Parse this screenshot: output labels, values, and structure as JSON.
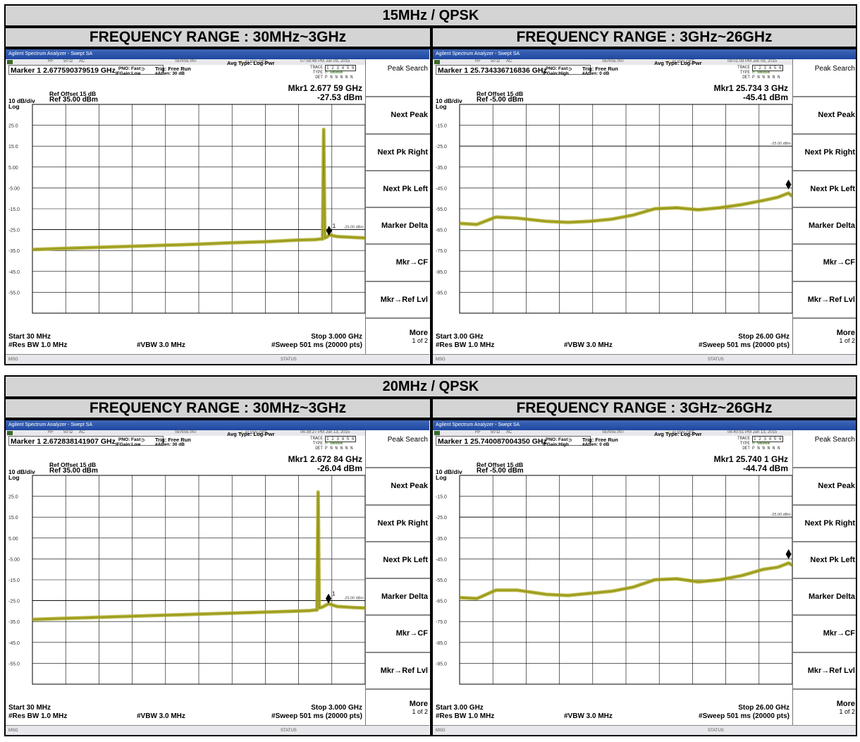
{
  "sections": [
    {
      "title": "15MHz / QPSK",
      "ranges": [
        {
          "header": "FREQUENCY RANGE : 30MHz~3GHz",
          "app_title": "Agilent Spectrum Analyzer - Swept SA",
          "status": {
            "rf": "RF",
            "imp": "50 Ω",
            "coupling": "AC",
            "sense": "SENSE:INT",
            "align": "ALIGN OFF",
            "time": "07:59:48 PM Jun 09, 2015"
          },
          "marker_line": "Marker 1 2.677590379519 GHz",
          "pno": "PNO: Fast",
          "ifgain": "IFGain:Low",
          "trig": "Trig: Free Run",
          "atten": "#Atten: 30 dB",
          "avg_type": "Avg Type: Log-Pwr",
          "trace": {
            "label_trace": "TRACE",
            "label_type": "TYPE",
            "label_det": "DET",
            "trace_nums": "1 2 3 4 5 6",
            "type_val": "M WWWWW",
            "det_val": "P N N N N N"
          },
          "ref_offset": "Ref Offset 15 dB",
          "scale": "10 dB/div",
          "ref_level": "Ref 35.00 dBm",
          "log_label": "Log",
          "mkr_freq": "Mkr1 2.677 59 GHz",
          "mkr_amp": "-27.53 dBm",
          "limit_label": "-25.00 dBm",
          "marker_label": "1",
          "start": "Start 30 MHz",
          "stop": "Stop 3.000 GHz",
          "res_bw": "#Res BW 1.0 MHz",
          "vbw": "#VBW 3.0 MHz",
          "sweep": "#Sweep  501 ms (20000 pts)",
          "msg": "MSG",
          "status_label": "STATUS",
          "softkeys": [
            "Peak Search",
            "Next Peak",
            "Next Pk Right",
            "Next Pk Left",
            "Marker Delta",
            "Mkr→CF",
            "Mkr→Ref Lvl",
            "More"
          ],
          "more_sub": "1 of 2",
          "chart_data": {
            "type": "line",
            "x_unit": "GHz",
            "y_unit": "dBm",
            "xlim": [
              0.03,
              3.0
            ],
            "ylim": [
              -65,
              35
            ],
            "ytick_labels": [
              "25.0",
              "15.0",
              "5.00",
              "-5.00",
              "-15.0",
              "-25.0",
              "-35.0",
              "-45.0",
              "-55.0"
            ],
            "ytick_values": [
              25,
              15,
              5,
              -5,
              -15,
              -25,
              -35,
              -45,
              -55
            ],
            "limit_line": -25.0,
            "marker": {
              "x": 2.67759,
              "y": -27.53
            },
            "series": [
              {
                "x": [
                  0.03,
                  0.3,
                  0.6,
                  0.9,
                  1.2,
                  1.5,
                  1.8,
                  2.1,
                  2.4,
                  2.55,
                  2.6,
                  2.62,
                  2.63,
                  2.64,
                  2.66,
                  2.678,
                  2.75,
                  2.9,
                  3.0
                ],
                "y": [
                  -34.5,
                  -34,
                  -33.5,
                  -33,
                  -32.5,
                  -32,
                  -31.3,
                  -30.8,
                  -30,
                  -29.8,
                  -29.5,
                  -29.5,
                  23,
                  -29,
                  -28.5,
                  -27.5,
                  -28.3,
                  -28.7,
                  -29
                ]
              }
            ]
          }
        },
        {
          "header": "FREQUENCY RANGE : 3GHz~26GHz",
          "app_title": "Agilent Spectrum Analyzer - Swept SA",
          "status": {
            "rf": "RF",
            "imp": "50 Ω",
            "coupling": "AC",
            "sense": "SENSE:INT",
            "align": "ALIGN OFF",
            "time": "08:01:09 PM Jun 09, 2015"
          },
          "marker_line": "Marker 1 25.734336716836 GHz",
          "pno": "PNO: Fast",
          "ifgain": "IFGain:High",
          "trig": "Trig: Free Run",
          "atten": "#Atten: 0 dB",
          "avg_type": "Avg Type: Log-Pwr",
          "trace": {
            "label_trace": "TRACE",
            "label_type": "TYPE",
            "label_det": "DET",
            "trace_nums": "1 2 3 4 5 6",
            "type_val": "M WWWWW",
            "det_val": "P N N N N N"
          },
          "ref_offset": "Ref Offset 15 dB",
          "scale": "10 dB/div",
          "ref_level": "Ref -5.00 dBm",
          "log_label": "Log",
          "mkr_freq": "Mkr1 25.734 3 GHz",
          "mkr_amp": "-45.41 dBm",
          "limit_label": "-25.00 dBm",
          "marker_label": "1",
          "start": "Start 3.00 GHz",
          "stop": "Stop 26.00 GHz",
          "res_bw": "#Res BW 1.0 MHz",
          "vbw": "#VBW 3.0 MHz",
          "sweep": "#Sweep  501 ms (20000 pts)",
          "msg": "MSG",
          "status_label": "STATUS",
          "softkeys": [
            "Peak Search",
            "Next Peak",
            "Next Pk Right",
            "Next Pk Left",
            "Marker Delta",
            "Mkr→CF",
            "Mkr→Ref Lvl",
            "More"
          ],
          "more_sub": "1 of 2",
          "chart_data": {
            "type": "line",
            "x_unit": "GHz",
            "y_unit": "dBm",
            "xlim": [
              3.0,
              26.0
            ],
            "ylim": [
              -105,
              -5
            ],
            "ytick_labels": [
              "-15.0",
              "-25.0",
              "-35.0",
              "-45.0",
              "-55.0",
              "-65.0",
              "-75.0",
              "-85.0",
              "-95.0"
            ],
            "ytick_values": [
              -15,
              -25,
              -35,
              -45,
              -55,
              -65,
              -75,
              -85,
              -95
            ],
            "limit_line": -25.0,
            "marker": {
              "x": 25.7343,
              "y": -45.41
            },
            "series": [
              {
                "x": [
                  3.0,
                  4.2,
                  5.5,
                  7.0,
                  9.0,
                  10.5,
                  12.0,
                  13.5,
                  15.0,
                  16.5,
                  18.0,
                  19.5,
                  21.0,
                  22.5,
                  24.0,
                  25.0,
                  25.73,
                  26.0
                ],
                "y": [
                  -62,
                  -62.5,
                  -59,
                  -59.5,
                  -61,
                  -61.5,
                  -61,
                  -60,
                  -58,
                  -55,
                  -54.5,
                  -55.5,
                  -54.5,
                  -53,
                  -51,
                  -49.5,
                  -47.5,
                  -49
                ]
              }
            ]
          }
        }
      ]
    },
    {
      "title": "20MHz / QPSK",
      "ranges": [
        {
          "header": "FREQUENCY RANGE : 30MHz~3GHz",
          "app_title": "Agilent Spectrum Analyzer - Swept SA",
          "status": {
            "rf": "RF",
            "imp": "50 Ω",
            "coupling": "AC",
            "sense": "SENSE:INT",
            "align": "ALIGN OFF",
            "time": "06:39:27 PM Jun 13, 2015"
          },
          "marker_line": "Marker 1 2.672838141907 GHz",
          "pno": "PNO: Fast",
          "ifgain": "IFGain:Low",
          "trig": "Trig: Free Run",
          "atten": "#Atten: 30 dB",
          "avg_type": "Avg Type: Log-Pwr",
          "trace": {
            "label_trace": "TRACE",
            "label_type": "TYPE",
            "label_det": "DET",
            "trace_nums": "1 2 3 4 5 6",
            "type_val": "M WWWWW",
            "det_val": "P N N N N N"
          },
          "ref_offset": "Ref Offset 15 dB",
          "scale": "10 dB/div",
          "ref_level": "Ref 35.00 dBm",
          "log_label": "Log",
          "mkr_freq": "Mkr1 2.672 84 GHz",
          "mkr_amp": "-26.04 dBm",
          "limit_label": "-25.00 dBm",
          "marker_label": "1",
          "start": "Start 30 MHz",
          "stop": "Stop 3.000 GHz",
          "res_bw": "#Res BW 1.0 MHz",
          "vbw": "#VBW 3.0 MHz",
          "sweep": "#Sweep  501 ms (20000 pts)",
          "msg": "MSG",
          "status_label": "STATUS",
          "softkeys": [
            "Peak Search",
            "Next Peak",
            "Next Pk Right",
            "Next Pk Left",
            "Marker Delta",
            "Mkr→CF",
            "Mkr→Ref Lvl",
            "More"
          ],
          "more_sub": "1 of 2",
          "chart_data": {
            "type": "line",
            "x_unit": "GHz",
            "y_unit": "dBm",
            "xlim": [
              0.03,
              3.0
            ],
            "ylim": [
              -65,
              35
            ],
            "ytick_labels": [
              "25.0",
              "15.0",
              "5.00",
              "-5.00",
              "-15.0",
              "-25.0",
              "-35.0",
              "-45.0",
              "-55.0"
            ],
            "ytick_values": [
              25,
              15,
              5,
              -5,
              -15,
              -25,
              -35,
              -45,
              -55
            ],
            "limit_line": -25.0,
            "marker": {
              "x": 2.67284,
              "y": -26.04
            },
            "series": [
              {
                "x": [
                  0.03,
                  0.3,
                  0.6,
                  0.9,
                  1.2,
                  1.5,
                  1.8,
                  2.1,
                  2.4,
                  2.5,
                  2.55,
                  2.57,
                  2.58,
                  2.59,
                  2.62,
                  2.673,
                  2.75,
                  2.9,
                  3.0
                ],
                "y": [
                  -34,
                  -33.5,
                  -33,
                  -32.5,
                  -32,
                  -31.5,
                  -31,
                  -30.5,
                  -30,
                  -29.8,
                  -29.5,
                  -29.5,
                  27,
                  -28.5,
                  -28,
                  -26.5,
                  -27.8,
                  -28.3,
                  -28.5
                ]
              }
            ]
          }
        },
        {
          "header": "FREQUENCY RANGE : 3GHz~26GHz",
          "app_title": "Agilent Spectrum Analyzer - Swept SA",
          "status": {
            "rf": "RF",
            "imp": "50 Ω",
            "coupling": "AC",
            "sense": "SENSE:INT",
            "align": "ALIGN OFF",
            "time": "06:40:51 PM Jun 13, 2015"
          },
          "marker_line": "Marker 1 25.740087004350 GHz",
          "pno": "PNO: Fast",
          "ifgain": "IFGain:High",
          "trig": "Trig: Free Run",
          "atten": "#Atten: 0 dB",
          "avg_type": "Avg Type: Log-Pwr",
          "trace": {
            "label_trace": "TRACE",
            "label_type": "TYPE",
            "label_det": "DET",
            "trace_nums": "1 2 3 4 5 6",
            "type_val": "M WWWWW",
            "det_val": "P N N N N N"
          },
          "ref_offset": "Ref Offset 15 dB",
          "scale": "10 dB/div",
          "ref_level": "Ref -5.00 dBm",
          "log_label": "Log",
          "mkr_freq": "Mkr1 25.740 1 GHz",
          "mkr_amp": "-44.74 dBm",
          "limit_label": "-25.00 dBm",
          "marker_label": "1",
          "start": "Start 3.00 GHz",
          "stop": "Stop 26.00 GHz",
          "res_bw": "#Res BW 1.0 MHz",
          "vbw": "#VBW 3.0 MHz",
          "sweep": "#Sweep  501 ms (20000 pts)",
          "msg": "MSG",
          "status_label": "STATUS",
          "softkeys": [
            "Peak Search",
            "Next Peak",
            "Next Pk Right",
            "Next Pk Left",
            "Marker Delta",
            "Mkr→CF",
            "Mkr→Ref Lvl",
            "More"
          ],
          "more_sub": "1 of 2",
          "chart_data": {
            "type": "line",
            "x_unit": "GHz",
            "y_unit": "dBm",
            "xlim": [
              3.0,
              26.0
            ],
            "ylim": [
              -105,
              -5
            ],
            "ytick_labels": [
              "-15.0",
              "-25.0",
              "-35.0",
              "-45.0",
              "-55.0",
              "-65.0",
              "-75.0",
              "-85.0",
              "-95.0"
            ],
            "ytick_values": [
              -15,
              -25,
              -35,
              -45,
              -55,
              -65,
              -75,
              -85,
              -95
            ],
            "limit_line": -25.0,
            "marker": {
              "x": 25.7401,
              "y": -44.74
            },
            "series": [
              {
                "x": [
                  3.0,
                  4.2,
                  5.5,
                  7.0,
                  9.0,
                  10.5,
                  12.0,
                  13.5,
                  15.0,
                  16.5,
                  18.0,
                  19.5,
                  21.0,
                  22.5,
                  24.0,
                  25.0,
                  25.74,
                  26.0
                ],
                "y": [
                  -63.5,
                  -64,
                  -60,
                  -60,
                  -62,
                  -62.5,
                  -61.5,
                  -60.5,
                  -58.5,
                  -55,
                  -54.5,
                  -56,
                  -55,
                  -53,
                  -50,
                  -49,
                  -47,
                  -48
                ]
              }
            ]
          }
        }
      ]
    }
  ],
  "colors": {
    "trace": "#a7a61a",
    "grid": "#000000",
    "header_bg": "#d4d4d4",
    "titlebar": "#1d46a0"
  }
}
